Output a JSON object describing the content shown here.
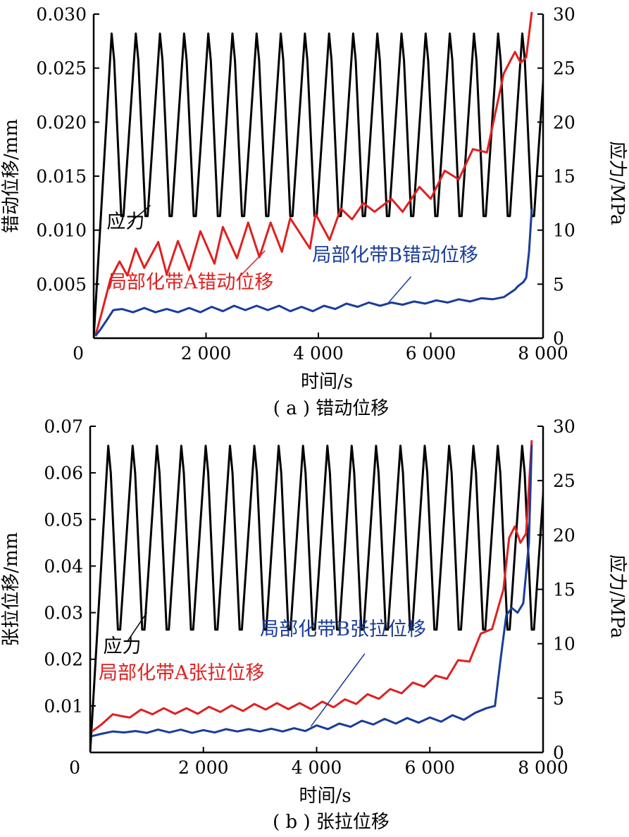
{
  "colors": {
    "stress": "#000000",
    "zone_a": "#e02020",
    "zone_b": "#1a3c9a"
  },
  "chart_data": [
    {
      "id": "a",
      "type": "line",
      "caption": "( a ) 错动位移",
      "xlabel": "时间/s",
      "ylabel_left": "错动位移/mm",
      "ylabel_right": "应力/MPa",
      "xlim": [
        0,
        8000
      ],
      "ylim_left": [
        0,
        0.03
      ],
      "ylim_right": [
        0,
        30
      ],
      "x_ticks": [
        0,
        2000,
        4000,
        6000,
        8000
      ],
      "x_tick_labels": [
        "0",
        "2 000",
        "4 000",
        "6 000",
        "8 000"
      ],
      "y_left_ticks": [
        0.005,
        0.01,
        0.015,
        0.02,
        0.025,
        0.03
      ],
      "y_left_tick_labels": [
        "0.005",
        "0.010",
        "0.015",
        "0.020",
        "0.025",
        "0.030"
      ],
      "y_right_ticks": [
        0,
        5,
        10,
        15,
        20,
        25,
        30
      ],
      "y_right_tick_labels": [
        "0",
        "5",
        "10",
        "15",
        "20",
        "25",
        "30"
      ],
      "stress": {
        "axis": "right",
        "cycle_period_s": 430,
        "cycles": 18,
        "first_peak_s": 340,
        "min_mpa": 11.3,
        "max_mpa": 28.2
      },
      "series": [
        {
          "key": "zone_a",
          "axis": "left",
          "x": [
            30,
            150,
            300,
            460,
            600,
            750,
            900,
            1150,
            1300,
            1500,
            1700,
            1900,
            2150,
            2300,
            2550,
            2750,
            2950,
            3150,
            3350,
            3500,
            3850,
            3950,
            4200,
            4400,
            4600,
            4800,
            5000,
            5300,
            5500,
            5800,
            6000,
            6250,
            6500,
            6750,
            7000,
            7300,
            7500,
            7600,
            7700,
            7800
          ],
          "y": [
            0.0002,
            0.0025,
            0.0055,
            0.0071,
            0.0058,
            0.0083,
            0.0065,
            0.0089,
            0.0059,
            0.009,
            0.0063,
            0.0099,
            0.0069,
            0.0103,
            0.0074,
            0.0107,
            0.0075,
            0.0107,
            0.008,
            0.0111,
            0.0083,
            0.0115,
            0.0091,
            0.012,
            0.011,
            0.0125,
            0.0117,
            0.0129,
            0.0117,
            0.014,
            0.0129,
            0.0155,
            0.0147,
            0.0175,
            0.0172,
            0.0245,
            0.0265,
            0.0255,
            0.026,
            0.0302
          ]
        },
        {
          "key": "zone_b",
          "axis": "left",
          "x": [
            30,
            120,
            250,
            350,
            500,
            700,
            900,
            1100,
            1300,
            1500,
            1700,
            1900,
            2100,
            2300,
            2500,
            2700,
            2900,
            3100,
            3300,
            3500,
            3700,
            3900,
            4100,
            4300,
            4500,
            4700,
            4900,
            5100,
            5300,
            5500,
            5700,
            5900,
            6100,
            6300,
            6500,
            6700,
            6900,
            7100,
            7300,
            7500,
            7550,
            7600,
            7650,
            7700,
            7750,
            7800
          ],
          "y": [
            0.0002,
            0.0008,
            0.0018,
            0.0026,
            0.0027,
            0.0024,
            0.0028,
            0.0024,
            0.0027,
            0.0024,
            0.0028,
            0.0024,
            0.0029,
            0.0025,
            0.003,
            0.0026,
            0.003,
            0.0026,
            0.003,
            0.0025,
            0.0029,
            0.0025,
            0.003,
            0.0027,
            0.0032,
            0.0029,
            0.0033,
            0.003,
            0.0033,
            0.0031,
            0.0034,
            0.0032,
            0.0035,
            0.0033,
            0.0036,
            0.0034,
            0.0037,
            0.0036,
            0.0038,
            0.0045,
            0.0048,
            0.005,
            0.0052,
            0.0056,
            0.008,
            0.012
          ]
        }
      ],
      "annotations": [
        {
          "text": "应力",
          "series": "stress",
          "text_pos": [
            230,
            0.0102
          ],
          "line_from": [
            620,
            0.0106
          ],
          "line_to": [
            1010,
            0.0123
          ]
        },
        {
          "text": "局部化带A错动位移",
          "series": "zone_a",
          "text_pos": [
            250,
            0.0046
          ],
          "line_from": [
            2600,
            0.0057
          ],
          "line_to": [
            3050,
            0.0081
          ]
        },
        {
          "text": "局部化带B错动位移",
          "series": "zone_b",
          "text_pos": [
            3890,
            0.0071
          ],
          "line_from": [
            5650,
            0.0057
          ],
          "line_to": [
            5250,
            0.0033
          ]
        }
      ]
    },
    {
      "id": "b",
      "type": "line",
      "caption": "( b ) 张拉位移",
      "xlabel": "时间/s",
      "ylabel_left": "张拉位移/mm",
      "ylabel_right": "应力/MPa",
      "xlim": [
        0,
        8000
      ],
      "ylim_left": [
        0,
        0.07
      ],
      "ylim_right": [
        0,
        30
      ],
      "x_ticks": [
        0,
        2000,
        4000,
        6000,
        8000
      ],
      "x_tick_labels": [
        "0",
        "2 000",
        "4 000",
        "6 000",
        "8 000"
      ],
      "y_left_ticks": [
        0.01,
        0.02,
        0.03,
        0.04,
        0.05,
        0.06,
        0.07
      ],
      "y_left_tick_labels": [
        "0.01",
        "0.02",
        "0.03",
        "0.04",
        "0.05",
        "0.06",
        "0.07"
      ],
      "y_right_ticks": [
        0,
        5,
        10,
        15,
        20,
        25,
        30
      ],
      "y_right_tick_labels": [
        "0",
        "5",
        "10",
        "15",
        "20",
        "25",
        "30"
      ],
      "stress": {
        "axis": "right",
        "cycle_period_s": 430,
        "cycles": 18,
        "first_peak_s": 340,
        "min_mpa": 11.3,
        "max_mpa": 28.2
      },
      "series": [
        {
          "key": "zone_a",
          "axis": "left",
          "x": [
            30,
            200,
            400,
            550,
            700,
            900,
            1100,
            1300,
            1500,
            1700,
            1900,
            2100,
            2300,
            2500,
            2700,
            2900,
            3100,
            3300,
            3500,
            3700,
            3900,
            4100,
            4300,
            4500,
            4700,
            4900,
            5100,
            5300,
            5500,
            5700,
            5900,
            6100,
            6300,
            6500,
            6700,
            6900,
            7100,
            7300,
            7400,
            7500,
            7600,
            7700,
            7800
          ],
          "y": [
            0.0045,
            0.006,
            0.0082,
            0.0078,
            0.0075,
            0.0092,
            0.0082,
            0.0095,
            0.0083,
            0.0095,
            0.0083,
            0.0098,
            0.0087,
            0.0101,
            0.0089,
            0.0104,
            0.0092,
            0.0106,
            0.0093,
            0.0106,
            0.0093,
            0.0109,
            0.0097,
            0.0114,
            0.0104,
            0.0125,
            0.0115,
            0.0136,
            0.0127,
            0.015,
            0.0141,
            0.0165,
            0.0158,
            0.0198,
            0.0195,
            0.0255,
            0.0265,
            0.035,
            0.046,
            0.0485,
            0.045,
            0.047,
            0.067
          ]
        },
        {
          "key": "zone_b",
          "axis": "left",
          "x": [
            30,
            200,
            400,
            600,
            800,
            1000,
            1200,
            1400,
            1600,
            1800,
            2000,
            2200,
            2400,
            2600,
            2800,
            3000,
            3200,
            3400,
            3600,
            3800,
            4000,
            4200,
            4400,
            4600,
            4800,
            5000,
            5200,
            5400,
            5600,
            5800,
            6000,
            6200,
            6400,
            6600,
            6800,
            7000,
            7150,
            7250,
            7350,
            7450,
            7550,
            7650,
            7750,
            7800
          ],
          "y": [
            0.0035,
            0.004,
            0.0045,
            0.0043,
            0.0046,
            0.0042,
            0.0049,
            0.0043,
            0.0049,
            0.0042,
            0.0048,
            0.0043,
            0.005,
            0.0045,
            0.005,
            0.0045,
            0.0051,
            0.0045,
            0.0052,
            0.0046,
            0.0058,
            0.005,
            0.0062,
            0.0055,
            0.0068,
            0.006,
            0.0072,
            0.0062,
            0.0074,
            0.0064,
            0.0075,
            0.0066,
            0.008,
            0.007,
            0.0085,
            0.0095,
            0.01,
            0.02,
            0.0295,
            0.031,
            0.03,
            0.032,
            0.045,
            0.066
          ]
        }
      ],
      "annotations": [
        {
          "text": "应力",
          "series": "stress",
          "text_pos": [
            230,
            0.0215
          ],
          "line_from": [
            650,
            0.0237
          ],
          "line_to": [
            1000,
            0.03
          ]
        },
        {
          "text": "局部化带A张拉位移",
          "series": "zone_a",
          "text_pos": [
            150,
            0.0157
          ],
          "line_from": [
            0,
            0
          ],
          "line_to": [
            0,
            0
          ]
        },
        {
          "text": "局部化带B张拉位移",
          "series": "zone_b",
          "text_pos": [
            3000,
            0.0251
          ],
          "line_from": [
            4850,
            0.0212
          ],
          "line_to": [
            3900,
            0.0056
          ]
        }
      ]
    }
  ]
}
